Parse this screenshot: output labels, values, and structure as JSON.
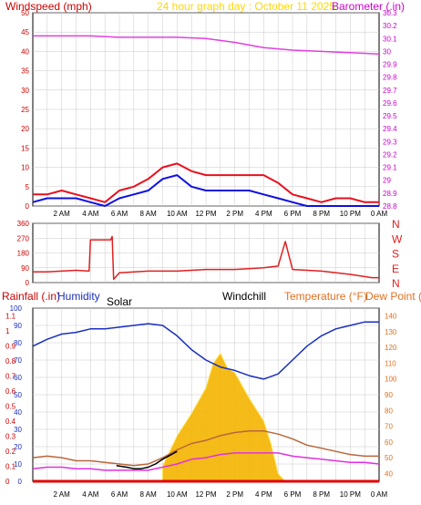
{
  "header": {
    "title": "24 hour graph day : October 11 2025",
    "left_label": "Windspeed (mph)",
    "right_label": "Barometer (.in)"
  },
  "colors": {
    "bg": "#ffffff",
    "plot_bg": "#ffffff",
    "grid": "#c8c8c8",
    "frame": "#000000",
    "wind_speed": "#e8101e",
    "wind_avg": "#1010e0",
    "barometer": "#e040e0",
    "direction": "#e02020",
    "humidity": "#1a2fbf",
    "temperature": "#b8663a",
    "dew_point": "#e030e0",
    "windchill": "#000000",
    "solar_fill": "#f5b400",
    "solar_edge": "#ffe040",
    "rain": "#e00000",
    "title_color": "#ffd700",
    "axis_left": "#cc0000",
    "axis_right": "#cc00cc",
    "axis_temp": "#e07020"
  },
  "hour_labels": [
    "2 AM",
    "4 AM",
    "6 AM",
    "8 AM",
    "10 AM",
    "12 PM",
    "2 PM",
    "4 PM",
    "6 PM",
    "8 PM",
    "10 PM",
    "0 AM"
  ],
  "chart_data": [
    {
      "type": "line",
      "panel": "wind-barometer",
      "x_label": "hour",
      "y_left": {
        "label": "Windspeed (mph)",
        "ticks": [
          0,
          5,
          10,
          15,
          20,
          25,
          30,
          35,
          40,
          45,
          50
        ],
        "range": [
          0,
          50
        ]
      },
      "y_right": {
        "label": "Barometer (.in)",
        "ticks": [
          "28.8",
          "28.9",
          "29",
          "29.1",
          "29.2",
          "29.3",
          "29.4",
          "29.5",
          "29.6",
          "29.7",
          "29.8",
          "29.9",
          "30",
          "30.1",
          "30.2",
          "30.3"
        ],
        "range": [
          28.8,
          30.3
        ]
      },
      "series": [
        {
          "name": "Windspeed",
          "axis": "left",
          "x": [
            0,
            1,
            2,
            3,
            4,
            5,
            6,
            7,
            8,
            9,
            10,
            11,
            12,
            13,
            14,
            15,
            16,
            17,
            18,
            19,
            20,
            21,
            22,
            23,
            24
          ],
          "y": [
            3,
            3,
            4,
            3,
            2,
            1,
            4,
            5,
            7,
            10,
            11,
            9,
            8,
            8,
            8,
            8,
            8,
            6,
            3,
            2,
            1,
            2,
            2,
            1,
            1
          ]
        },
        {
          "name": "Wind average",
          "axis": "left",
          "x": [
            0,
            1,
            2,
            3,
            4,
            5,
            6,
            7,
            8,
            9,
            10,
            11,
            12,
            13,
            14,
            15,
            16,
            17,
            18,
            19,
            20,
            21,
            22,
            23,
            24
          ],
          "y": [
            1,
            2,
            2,
            2,
            1,
            0,
            2,
            3,
            4,
            7,
            8,
            5,
            4,
            4,
            4,
            4,
            3,
            2,
            1,
            0,
            0,
            0,
            0,
            0,
            0
          ]
        },
        {
          "name": "Barometer",
          "axis": "right",
          "x": [
            0,
            2,
            4,
            6,
            8,
            10,
            12,
            14,
            16,
            18,
            20,
            22,
            24
          ],
          "y": [
            30.12,
            30.12,
            30.12,
            30.11,
            30.11,
            30.11,
            30.1,
            30.07,
            30.03,
            30.01,
            30.0,
            29.99,
            29.98
          ]
        }
      ]
    },
    {
      "type": "line",
      "panel": "wind-direction",
      "x_label": "hour",
      "y_left": {
        "ticks": [
          0,
          90,
          180,
          270,
          360
        ],
        "range": [
          0,
          360
        ]
      },
      "compass_labels": [
        "N",
        "W",
        "S",
        "E",
        "N"
      ],
      "series": [
        {
          "name": "Wind direction",
          "x": [
            0,
            1,
            2,
            3,
            3.9,
            4.0,
            5.4,
            5.5,
            5.6,
            6,
            8,
            10,
            12,
            14,
            16,
            17,
            17.5,
            18,
            20,
            22,
            23.5,
            24
          ],
          "y": [
            65,
            65,
            70,
            75,
            70,
            260,
            260,
            280,
            20,
            60,
            70,
            70,
            80,
            80,
            90,
            100,
            250,
            80,
            70,
            50,
            30,
            30
          ]
        }
      ]
    },
    {
      "type": "line",
      "panel": "temperature-humidity-solar",
      "x_label": "hour",
      "y_left_rain": {
        "label": "Rainfall (.in)",
        "ticks": [
          "0",
          "0.1",
          "0.2",
          "0.3",
          "0.4",
          "0.5",
          "0.6",
          "0.7",
          "0.8",
          "0.9",
          "1",
          "1.1"
        ],
        "range": [
          0,
          1.15
        ]
      },
      "y_left_humidity": {
        "label": "Humidity",
        "ticks": [
          0,
          10,
          20,
          30,
          40,
          50,
          60,
          70,
          80,
          90,
          100
        ],
        "range": [
          0,
          100
        ]
      },
      "y_right_temp": {
        "label": "Temperature (°F)",
        "ticks": [
          40,
          50,
          60,
          70,
          80,
          90,
          100,
          110,
          120,
          130,
          140
        ],
        "range": [
          35,
          145
        ]
      },
      "other_labels": {
        "solar": "Solar",
        "windchill": "Windchill",
        "dew_point": "Dew Point (°F)"
      },
      "series": [
        {
          "name": "Humidity",
          "x": [
            0,
            1,
            2,
            3,
            4,
            5,
            6,
            7,
            8,
            9,
            10,
            11,
            12,
            13,
            14,
            15,
            16,
            17,
            18,
            19,
            20,
            21,
            22,
            23,
            24
          ],
          "y": [
            78,
            82,
            85,
            86,
            88,
            88,
            89,
            90,
            91,
            90,
            84,
            76,
            70,
            66,
            64,
            61,
            59,
            62,
            70,
            78,
            84,
            88,
            90,
            92,
            92
          ]
        },
        {
          "name": "Temperature",
          "x": [
            0,
            1,
            2,
            3,
            4,
            5,
            6,
            7,
            8,
            9,
            10,
            11,
            12,
            13,
            14,
            15,
            16,
            17,
            18,
            19,
            20,
            21,
            22,
            23,
            24
          ],
          "y": [
            50,
            51,
            50,
            48,
            48,
            47,
            46,
            45,
            46,
            50,
            55,
            59,
            61,
            64,
            66,
            67,
            67,
            65,
            62,
            58,
            56,
            54,
            52,
            51,
            51
          ]
        },
        {
          "name": "Dew Point",
          "x": [
            0,
            1,
            2,
            3,
            4,
            5,
            6,
            7,
            8,
            9,
            10,
            11,
            12,
            13,
            14,
            15,
            16,
            17,
            18,
            19,
            20,
            21,
            22,
            23,
            24
          ],
          "y": [
            43,
            44,
            44,
            43,
            43,
            42,
            42,
            42,
            42,
            44,
            46,
            49,
            50,
            52,
            53,
            53,
            53,
            53,
            51,
            50,
            49,
            48,
            47,
            47,
            46
          ]
        },
        {
          "name": "Windchill",
          "x": [
            5.8,
            6.5,
            7,
            7.5,
            8,
            8.5,
            9,
            10
          ],
          "y": [
            45,
            44,
            43,
            43,
            44,
            46,
            49,
            54
          ]
        },
        {
          "name": "Solar",
          "x": [
            9,
            10,
            11,
            12,
            12.5,
            13,
            13.5,
            14,
            15,
            16,
            16.5,
            17,
            17.5
          ],
          "y": [
            0.1,
            0.3,
            0.45,
            0.62,
            0.78,
            0.85,
            0.75,
            0.72,
            0.55,
            0.4,
            0.25,
            0.05,
            0.0
          ]
        },
        {
          "name": "Rainfall",
          "x": [
            0,
            24
          ],
          "y": [
            0,
            0
          ]
        }
      ]
    }
  ]
}
